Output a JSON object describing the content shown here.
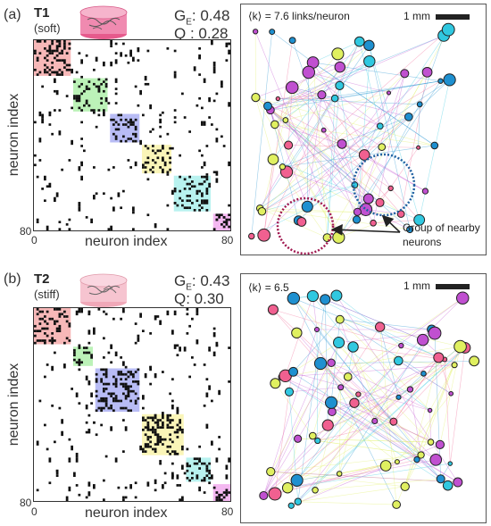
{
  "panels": [
    {
      "id": "a",
      "label": "(a)",
      "tissue_name": "T1",
      "tissue_type": "(soft)",
      "ge_label": "G",
      "ge_sub": "E",
      "ge_value": ": 0.48",
      "q_text": "Q : 0.28",
      "matrix_axis": {
        "y_title": "neuron index",
        "x_title": "neuron index",
        "tick_start": "0",
        "tick_end": "80",
        "n": 80
      },
      "modules": [
        {
          "start": 0,
          "end": 15,
          "color": "#f4a0a0"
        },
        {
          "start": 16,
          "end": 30,
          "color": "#a6eea0"
        },
        {
          "start": 31,
          "end": 43,
          "color": "#a0a6f2"
        },
        {
          "start": 44,
          "end": 56,
          "color": "#f8f2a0"
        },
        {
          "start": 57,
          "end": 72,
          "color": "#a0eeea"
        },
        {
          "start": 73,
          "end": 80,
          "color": "#f0a0ec"
        }
      ],
      "network": {
        "degree_text": "⟨k⟩ = 7.6 links/neuron",
        "scale_label": "1 mm",
        "annotation": "Group of nearby neurons"
      }
    },
    {
      "id": "b",
      "label": "(b)",
      "tissue_name": "T2",
      "tissue_type": "(stiff)",
      "ge_label": "G",
      "ge_sub": "E",
      "ge_value": ": 0.43",
      "q_text": "Q: 0.30",
      "matrix_axis": {
        "y_title": "neuron index",
        "x_title": "neuron index",
        "tick_start": "0",
        "tick_end": "80",
        "n": 80
      },
      "modules": [
        {
          "start": 0,
          "end": 15,
          "color": "#f4a0a0"
        },
        {
          "start": 16,
          "end": 24,
          "color": "#a6eea0"
        },
        {
          "start": 25,
          "end": 43,
          "color": "#a0a6f2"
        },
        {
          "start": 44,
          "end": 61,
          "color": "#f8f2a0"
        },
        {
          "start": 62,
          "end": 72,
          "color": "#a0eeea"
        },
        {
          "start": 73,
          "end": 80,
          "color": "#f0a0ec"
        }
      ],
      "network": {
        "degree_text": "⟨k⟩ = 6.5",
        "scale_label": "1 mm"
      }
    }
  ],
  "node_colors": [
    "#e0f060",
    "#30c8e0",
    "#f06090",
    "#c050d0",
    "#1e90d0"
  ]
}
